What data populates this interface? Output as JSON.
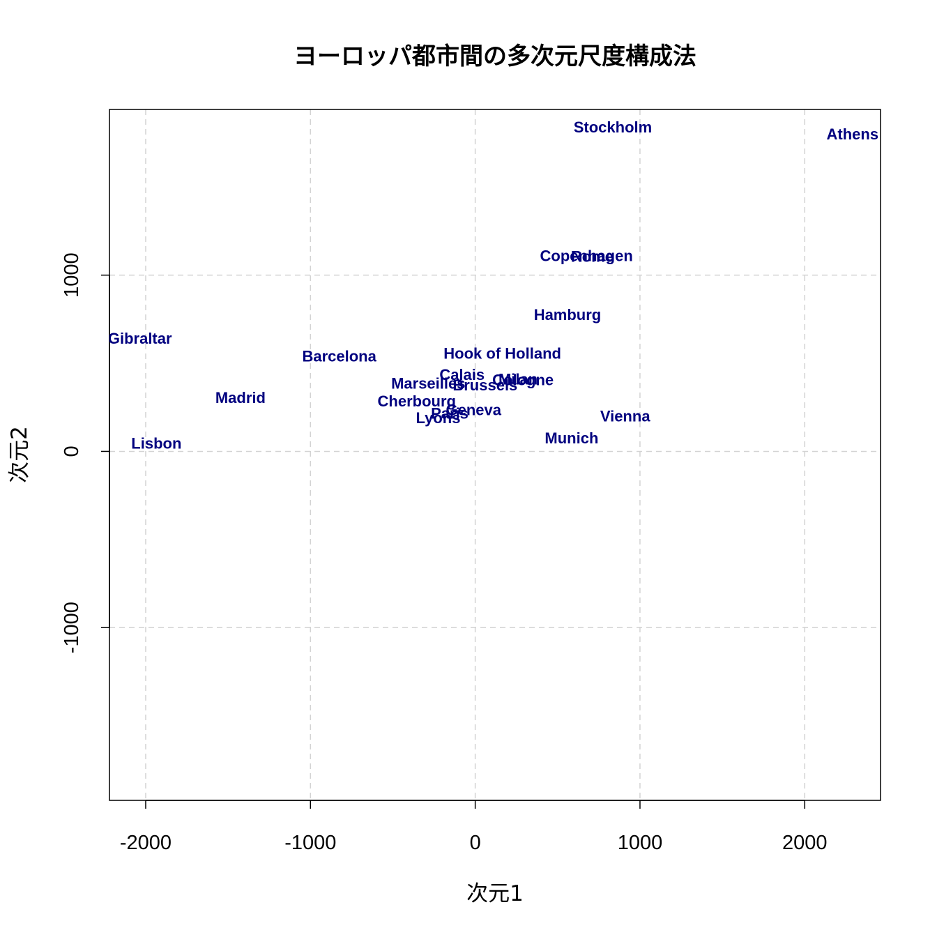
{
  "chart_data": {
    "type": "scatter",
    "title": "ヨーロッパ都市間の多次元尺度構成法",
    "xlabel": "次元1",
    "ylabel": "次元2",
    "xlim": [
      -2220,
      2460
    ],
    "ylim": [
      -1980,
      1940
    ],
    "x_ticks": [
      -2000,
      -1000,
      0,
      1000,
      2000
    ],
    "y_ticks": [
      -1000,
      0,
      1000
    ],
    "x_tick_labels": [
      "-2000",
      "-1000",
      "0",
      "1000",
      "2000"
    ],
    "y_tick_labels": [
      "-1000",
      "0",
      "1000"
    ],
    "grid": true,
    "label_color": "#00007f",
    "grid_color": "#d3d3d3",
    "points": [
      {
        "label": "Athens",
        "x": 2290,
        "y": 1800
      },
      {
        "label": "Rome",
        "x": 710,
        "y": 1105
      },
      {
        "label": "Gibraltar",
        "x": -2035,
        "y": 640
      },
      {
        "label": "Barcelona",
        "x": -825,
        "y": 540
      },
      {
        "label": "Milan",
        "x": 260,
        "y": 410
      },
      {
        "label": "Marseilles",
        "x": -285,
        "y": 385
      },
      {
        "label": "Madrid",
        "x": -1425,
        "y": 305
      },
      {
        "label": "Geneva",
        "x": -10,
        "y": 235
      },
      {
        "label": "Lyons",
        "x": -225,
        "y": 190
      },
      {
        "label": "Vienna",
        "x": 910,
        "y": 200
      },
      {
        "label": "Munich",
        "x": 585,
        "y": 75
      },
      {
        "label": "Lisbon",
        "x": -1935,
        "y": 45
      },
      {
        "label": "Paris",
        "x": -155,
        "y": 215
      },
      {
        "label": "Cherbourg",
        "x": -355,
        "y": 285
      },
      {
        "label": "Brussels",
        "x": 60,
        "y": 375
      },
      {
        "label": "Cologne",
        "x": 290,
        "y": 405
      },
      {
        "label": "Calais",
        "x": -80,
        "y": 435
      },
      {
        "label": "Hook of Holland",
        "x": 165,
        "y": 555
      },
      {
        "label": "Hamburg",
        "x": 560,
        "y": 775
      },
      {
        "label": "Copenhagen",
        "x": 675,
        "y": 1110
      },
      {
        "label": "Stockholm",
        "x": 835,
        "y": 1840
      }
    ]
  }
}
